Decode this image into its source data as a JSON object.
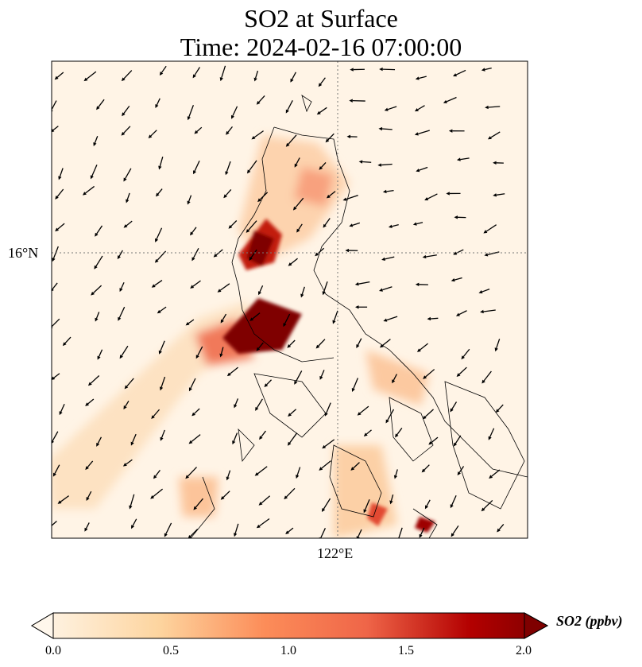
{
  "title": {
    "line1": "SO2 at Surface",
    "line2": "Time: 2024-02-16 07:00:00"
  },
  "map": {
    "lat_label": "16°N",
    "lon_label": "122°E",
    "gridlines": "dotted"
  },
  "colorbar": {
    "label": "SO2 (ppbv)",
    "ticks": [
      "0.0",
      "0.5",
      "1.0",
      "1.5",
      "2.0"
    ],
    "range": [
      0.0,
      2.0
    ],
    "colormap": "OrRd",
    "extend": "both",
    "colors": [
      "#fff7ec",
      "#fdd49e",
      "#fc8d59",
      "#d7301f",
      "#b30000",
      "#7f0000"
    ]
  }
}
